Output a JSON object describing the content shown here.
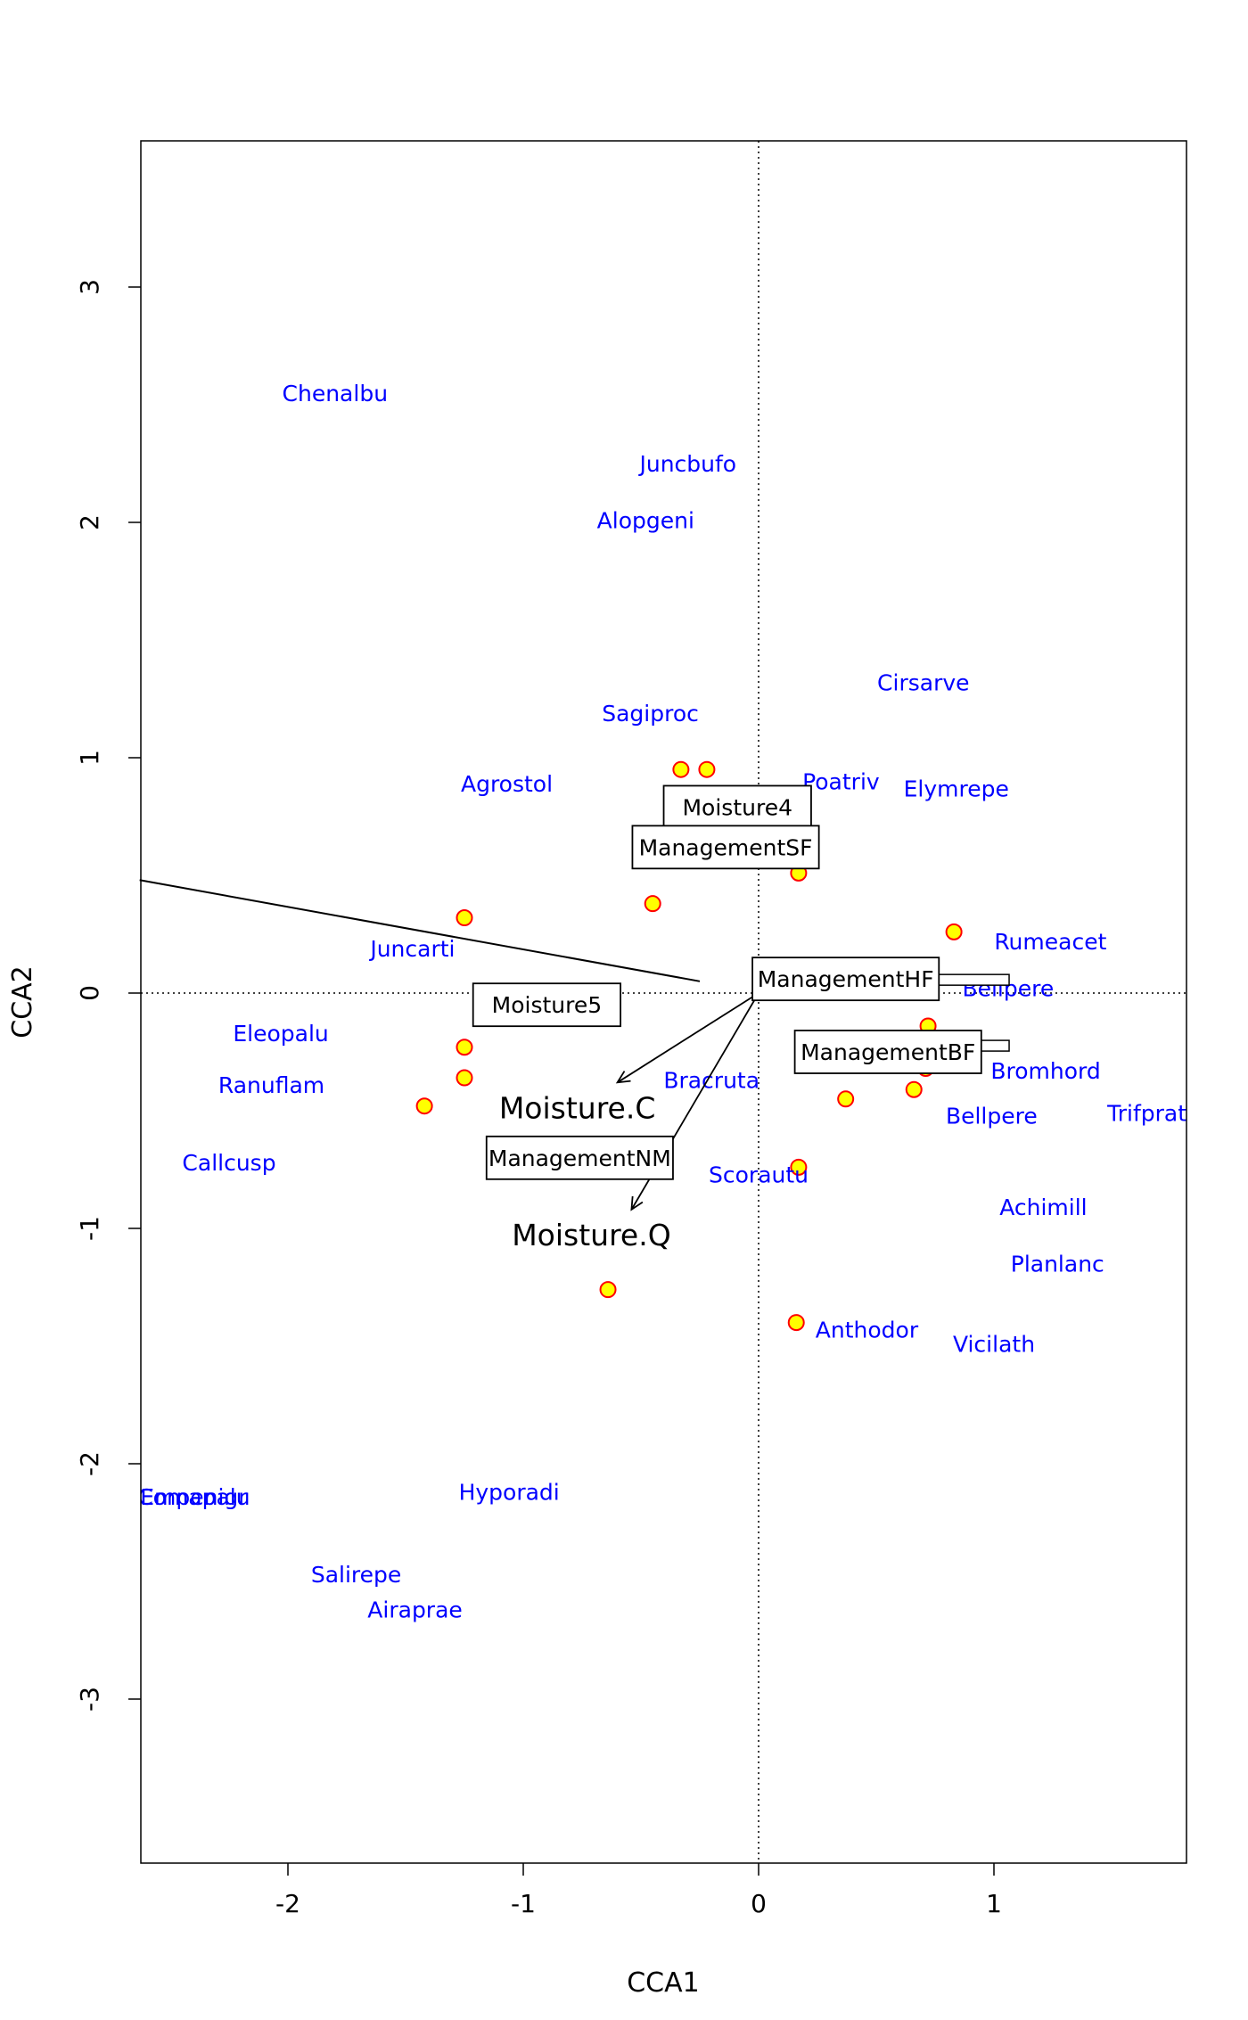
{
  "chart_data": {
    "type": "scatter",
    "title": "",
    "xlabel": "CCA1",
    "ylabel": "CCA2",
    "xlim": [
      -2.63,
      1.82
    ],
    "ylim": [
      -3.6,
      3.6
    ],
    "x_ticks": [
      -2,
      -1,
      0,
      1
    ],
    "y_ticks": [
      -3,
      -2,
      -1,
      0,
      1,
      2,
      3
    ],
    "grid": false,
    "reference_lines": {
      "x": 0,
      "y": 0,
      "style": "dotted"
    },
    "colors": {
      "species": "#0000ff",
      "site_fill": "#ffff00",
      "site_stroke": "#ff0000"
    },
    "species": [
      {
        "label": "Chenalbu",
        "x": -1.8,
        "y": 2.55
      },
      {
        "label": "Juncbufo",
        "x": -0.3,
        "y": 2.25
      },
      {
        "label": "Alopgeni",
        "x": -0.48,
        "y": 2.01
      },
      {
        "label": "Cirsarve",
        "x": 0.7,
        "y": 1.32
      },
      {
        "label": "Sagiproc",
        "x": -0.46,
        "y": 1.19
      },
      {
        "label": "Agrostol",
        "x": -1.07,
        "y": 0.89
      },
      {
        "label": "Poatriv",
        "x": 0.35,
        "y": 0.9
      },
      {
        "label": "Elymrepe",
        "x": 0.84,
        "y": 0.87
      },
      {
        "label": "Rumeacet",
        "x": 1.24,
        "y": 0.22
      },
      {
        "label": "Juncarti",
        "x": -1.47,
        "y": 0.19
      },
      {
        "label": "Bellpere_hidden",
        "x": 1.06,
        "y": 0.02
      },
      {
        "label": "Eleopalu",
        "x": -2.03,
        "y": -0.17
      },
      {
        "label": "Bracruta",
        "x": -0.2,
        "y": -0.37
      },
      {
        "label": "Bromhord",
        "x": 1.22,
        "y": -0.33
      },
      {
        "label": "Ranuflam",
        "x": -2.07,
        "y": -0.39
      },
      {
        "label": "Bellpere",
        "x": 0.99,
        "y": -0.52
      },
      {
        "label": "Trifprat",
        "x": 1.65,
        "y": -0.51
      },
      {
        "label": "Callcusp",
        "x": -2.25,
        "y": -0.72
      },
      {
        "label": "Scorautu",
        "x": 0.0,
        "y": -0.77
      },
      {
        "label": "Achimill",
        "x": 1.21,
        "y": -0.91
      },
      {
        "label": "Planlanc",
        "x": 1.27,
        "y": -1.15
      },
      {
        "label": "Anthodor",
        "x": 0.46,
        "y": -1.43
      },
      {
        "label": "Vicilath",
        "x": 1.0,
        "y": -1.49
      },
      {
        "label": "Hyporadi",
        "x": -1.06,
        "y": -2.12
      },
      {
        "label": "Salirepe",
        "x": -1.71,
        "y": -2.47
      },
      {
        "label": "Airaprae",
        "x": -1.46,
        "y": -2.62
      },
      {
        "label": "Empenigr",
        "x": -2.4,
        "y": -2.14
      },
      {
        "label": "Comapalu",
        "x": -2.4,
        "y": -2.14
      }
    ],
    "sites": [
      {
        "x": -0.33,
        "y": 0.95
      },
      {
        "x": -0.22,
        "y": 0.95
      },
      {
        "x": 0.17,
        "y": 0.51
      },
      {
        "x": -0.45,
        "y": 0.38
      },
      {
        "x": -1.25,
        "y": 0.32
      },
      {
        "x": 0.83,
        "y": 0.26
      },
      {
        "x": 0.72,
        "y": -0.14
      },
      {
        "x": 0.71,
        "y": -0.32
      },
      {
        "x": -1.25,
        "y": -0.23
      },
      {
        "x": -1.25,
        "y": -0.36
      },
      {
        "x": 0.37,
        "y": -0.45
      },
      {
        "x": 0.66,
        "y": -0.41
      },
      {
        "x": -1.42,
        "y": -0.48
      },
      {
        "x": 0.17,
        "y": -0.74
      },
      {
        "x": -0.64,
        "y": -1.26
      },
      {
        "x": 0.16,
        "y": -1.4
      }
    ],
    "factor_centroids": [
      {
        "label": "Moisture4",
        "x": -0.09,
        "y": 0.79
      },
      {
        "label": "ManagementSF",
        "x": -0.14,
        "y": 0.62
      },
      {
        "label": "ManagementHF",
        "x": 0.37,
        "y": 0.06
      },
      {
        "label": "Moisture5",
        "x": -0.9,
        "y": -0.05
      },
      {
        "label": "ManagementBF",
        "x": 0.55,
        "y": -0.25
      },
      {
        "label": "ManagementNM",
        "x": -0.76,
        "y": -0.7
      }
    ],
    "biplot_arrows": [
      {
        "label": "Moisture.C",
        "x": -0.6,
        "y": -0.38
      },
      {
        "label": "Moisture.Q",
        "x": -0.54,
        "y": -0.92
      }
    ],
    "long_line": {
      "x1": -2.63,
      "y1": 0.48,
      "x2": -0.25,
      "y2": 0.05
    }
  }
}
